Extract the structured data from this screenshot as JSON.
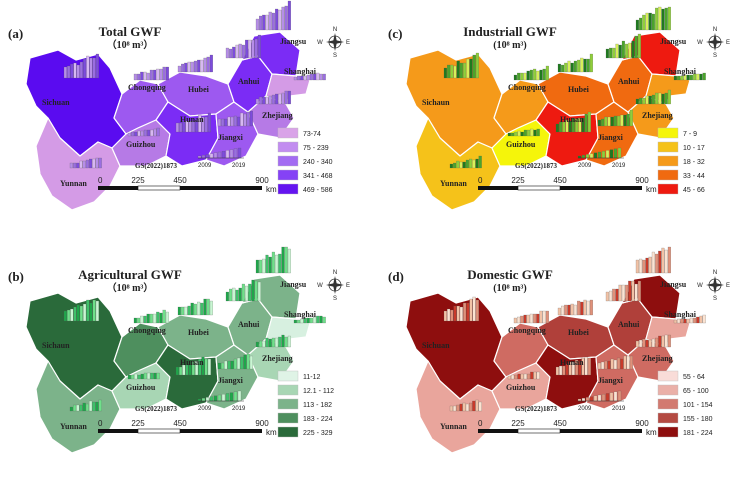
{
  "panels": [
    {
      "id": "a",
      "label": "(a)",
      "title": "Total GWF",
      "unit": "（10⁸ m³）",
      "ref": "GS(2022)1873",
      "scale": [
        "0",
        "225",
        "450",
        "900"
      ],
      "scale_unit": "km",
      "years": [
        "2009",
        "2019"
      ],
      "region_colors": [
        "#d49be6",
        "#b67ae6",
        "#9d59f0",
        "#7b2cf5",
        "#5a0bf0"
      ],
      "bar_colors": [
        "#b68ee8",
        "#9a6ee0",
        "#7d4cdc",
        "#d7b8f2"
      ],
      "legend": [
        {
          "label": "73-74",
          "color": "#d9a3e8"
        },
        {
          "label": "75 - 239",
          "color": "#c28df0"
        },
        {
          "label": "240 - 340",
          "color": "#a36cf2"
        },
        {
          "label": "341 - 468",
          "color": "#8542f5"
        },
        {
          "label": "469 - 586",
          "color": "#6414f0"
        }
      ],
      "provinces": [
        {
          "name": "Sichuan",
          "cls": 4
        },
        {
          "name": "Chongqing",
          "cls": 2
        },
        {
          "name": "Yunnan",
          "cls": 0
        },
        {
          "name": "Guizhou",
          "cls": 1
        },
        {
          "name": "Hubei",
          "cls": 2
        },
        {
          "name": "Hunan",
          "cls": 3
        },
        {
          "name": "Jiangxi",
          "cls": 2
        },
        {
          "name": "Anhui",
          "cls": 3
        },
        {
          "name": "Zhejiang",
          "cls": 1
        },
        {
          "name": "Jiangsu",
          "cls": 3
        },
        {
          "name": "Shanghai",
          "cls": 0
        }
      ]
    },
    {
      "id": "c",
      "label": "(c)",
      "title": "Industriall GWF",
      "unit": "(10⁸ m³)",
      "ref": "GS(2022)1873",
      "scale": [
        "0",
        "225",
        "450",
        "900"
      ],
      "scale_unit": "km",
      "years": [
        "2009",
        "2019"
      ],
      "region_colors": [
        "#f5f50a",
        "#f5c21a",
        "#f59a1a",
        "#f06a10",
        "#ee1a10"
      ],
      "bar_colors": [
        "#1f7a1f",
        "#4ba52b",
        "#8fcf3a",
        "#d8f05a"
      ],
      "legend": [
        {
          "label": "7 - 9",
          "color": "#f5f50a"
        },
        {
          "label": "10 - 17",
          "color": "#f5c21a"
        },
        {
          "label": "18 - 32",
          "color": "#f59a1a"
        },
        {
          "label": "33 - 44",
          "color": "#f06a10"
        },
        {
          "label": "45 - 66",
          "color": "#ee1a10"
        }
      ],
      "provinces": [
        {
          "name": "Sichaun",
          "cls": 2
        },
        {
          "name": "Chongqing",
          "cls": 2
        },
        {
          "name": "Yunnan",
          "cls": 1
        },
        {
          "name": "Guizhou",
          "cls": 0
        },
        {
          "name": "Hubei",
          "cls": 3
        },
        {
          "name": "Hunan",
          "cls": 4
        },
        {
          "name": "Jiangxi",
          "cls": 3
        },
        {
          "name": "Anhui",
          "cls": 3
        },
        {
          "name": "Zhejiang",
          "cls": 2
        },
        {
          "name": "Jiangsu",
          "cls": 4
        },
        {
          "name": "Shanghai",
          "cls": 2
        }
      ]
    },
    {
      "id": "b",
      "label": "(b)",
      "title": "Agricultural GWF",
      "unit": "（10⁸ m³）",
      "ref": "GS(2022)1873",
      "scale": [
        "0",
        "225",
        "450",
        "900"
      ],
      "scale_unit": "km",
      "years": [
        "2009",
        "2019"
      ],
      "region_colors": [
        "#d7f0e0",
        "#a8d6b4",
        "#7cb38a",
        "#4e8f5e",
        "#2a6a3a"
      ],
      "bar_colors": [
        "#1fa64a",
        "#6fe08a",
        "#c8f7d2",
        "#3fc06a"
      ],
      "legend": [
        {
          "label": "11-12",
          "color": "#dff3e6"
        },
        {
          "label": "12.1 - 112",
          "color": "#a8d6b4"
        },
        {
          "label": "113 - 182",
          "color": "#7cb38a"
        },
        {
          "label": "183 - 224",
          "color": "#4e8f5e"
        },
        {
          "label": "225 - 329",
          "color": "#2a6a3a"
        }
      ],
      "provinces": [
        {
          "name": "Sichaun",
          "cls": 4
        },
        {
          "name": "Chongqing",
          "cls": 3
        },
        {
          "name": "Yunnan",
          "cls": 2
        },
        {
          "name": "Guizhou",
          "cls": 1
        },
        {
          "name": "Hubei",
          "cls": 2
        },
        {
          "name": "Hunan",
          "cls": 4
        },
        {
          "name": "Jiangxi",
          "cls": 2
        },
        {
          "name": "Anhui",
          "cls": 2
        },
        {
          "name": "Zhejiang",
          "cls": 1
        },
        {
          "name": "Jiangsu",
          "cls": 2
        },
        {
          "name": "Shanghai",
          "cls": 0
        }
      ]
    },
    {
      "id": "d",
      "label": "(d)",
      "title": "Domestic GWF",
      "unit": "(10⁸ m³)",
      "ref": "GS(2022)1873",
      "scale": [
        "0",
        "225",
        "450",
        "900"
      ],
      "scale_unit": "km",
      "years": [
        "2009",
        "2019"
      ],
      "region_colors": [
        "#f6d3d0",
        "#e9a59c",
        "#cf6b62",
        "#b0403a",
        "#8e0e0e"
      ],
      "bar_colors": [
        "#f2c2a6",
        "#fbe3d2",
        "#e0917a",
        "#c93a2a"
      ],
      "legend": [
        {
          "label": "55 - 64",
          "color": "#f9dcd8"
        },
        {
          "label": "65 - 100",
          "color": "#eab0a8"
        },
        {
          "label": "101 - 154",
          "color": "#d27a70"
        },
        {
          "label": "155 - 180",
          "color": "#b44a42"
        },
        {
          "label": "181 - 224",
          "color": "#8e0e0e"
        }
      ],
      "provinces": [
        {
          "name": "Sichuan",
          "cls": 4
        },
        {
          "name": "Chongqing",
          "cls": 2
        },
        {
          "name": "Yunnan",
          "cls": 1
        },
        {
          "name": "Guizhou",
          "cls": 1
        },
        {
          "name": "Hubei",
          "cls": 3
        },
        {
          "name": "Hunan",
          "cls": 4
        },
        {
          "name": "Jiangxi",
          "cls": 2
        },
        {
          "name": "Anhui",
          "cls": 3
        },
        {
          "name": "Zhejiang",
          "cls": 2
        },
        {
          "name": "Jiangsu",
          "cls": 4
        },
        {
          "name": "Shanghai",
          "cls": 1
        }
      ]
    }
  ],
  "compass": {
    "n": "N",
    "s": "S",
    "e": "E",
    "w": "W"
  }
}
